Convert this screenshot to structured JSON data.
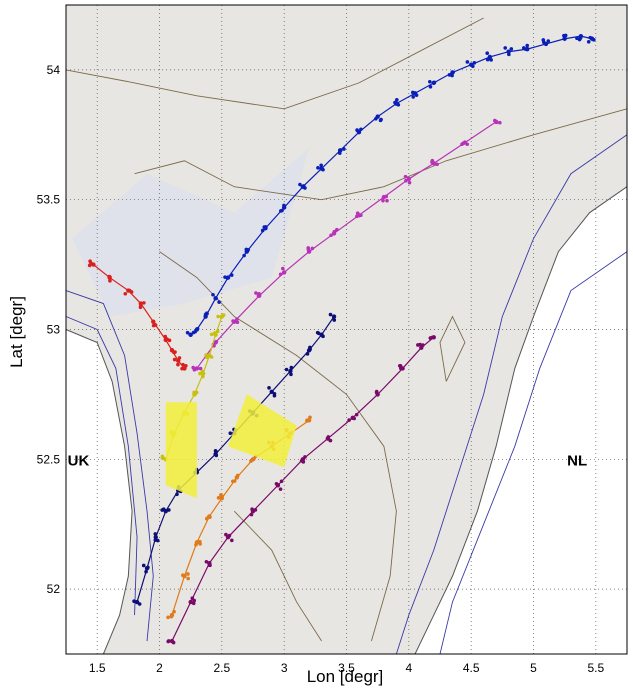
{
  "chart_data": {
    "type": "scatter",
    "title": "",
    "xlabel": "Lon [degr]",
    "ylabel": "Lat [degr]",
    "xlim": [
      1.25,
      5.75
    ],
    "ylim": [
      51.75,
      54.25
    ],
    "xticks": [
      1.5,
      2,
      2.5,
      3,
      3.5,
      4,
      4.5,
      5,
      5.5
    ],
    "yticks": [
      52,
      52.5,
      53,
      53.5,
      54
    ],
    "grid": true,
    "annotations": [
      {
        "text": "UK",
        "x": 1.35,
        "y": 52.5
      },
      {
        "text": "NL",
        "x": 5.35,
        "y": 52.5
      }
    ],
    "colors": {
      "land": "#ffffff",
      "sea": "#e7e6e2",
      "sea_tint": "#dcdfee",
      "contour_depth": "#7c6a4a",
      "contour_coast": "#3a3aa8",
      "coast": "#555555",
      "grid": "#555555"
    },
    "series": [
      {
        "color": "#0a1eb8",
        "kind": "track",
        "points": [
          [
            2.25,
            52.98
          ],
          [
            2.3,
            53.0
          ],
          [
            2.37,
            53.05
          ],
          [
            2.45,
            53.12
          ],
          [
            2.55,
            53.2
          ],
          [
            2.7,
            53.3
          ],
          [
            2.85,
            53.39
          ],
          [
            3.0,
            53.47
          ],
          [
            3.15,
            53.55
          ],
          [
            3.3,
            53.62
          ],
          [
            3.45,
            53.69
          ],
          [
            3.6,
            53.76
          ],
          [
            3.75,
            53.82
          ],
          [
            3.9,
            53.87
          ],
          [
            4.05,
            53.91
          ],
          [
            4.2,
            53.95
          ],
          [
            4.35,
            53.99
          ],
          [
            4.5,
            54.02
          ],
          [
            4.65,
            54.05
          ],
          [
            4.8,
            54.07
          ],
          [
            4.95,
            54.08
          ],
          [
            5.1,
            54.1
          ],
          [
            5.25,
            54.12
          ],
          [
            5.38,
            54.13
          ],
          [
            5.47,
            54.12
          ]
        ]
      },
      {
        "color": "#d9201f",
        "kind": "track",
        "points": [
          [
            1.47,
            53.25
          ],
          [
            1.6,
            53.2
          ],
          [
            1.75,
            53.15
          ],
          [
            1.85,
            53.1
          ],
          [
            1.95,
            53.03
          ],
          [
            2.05,
            52.96
          ],
          [
            2.1,
            52.92
          ],
          [
            2.15,
            52.88
          ],
          [
            2.2,
            52.85
          ]
        ]
      },
      {
        "color": "#b833b8",
        "kind": "track",
        "points": [
          [
            2.3,
            52.85
          ],
          [
            2.45,
            52.95
          ],
          [
            2.6,
            53.03
          ],
          [
            2.8,
            53.13
          ],
          [
            3.0,
            53.22
          ],
          [
            3.2,
            53.3
          ],
          [
            3.4,
            53.37
          ],
          [
            3.6,
            53.44
          ],
          [
            3.8,
            53.51
          ],
          [
            4.0,
            53.58
          ],
          [
            4.2,
            53.64
          ],
          [
            4.45,
            53.72
          ],
          [
            4.7,
            53.8
          ]
        ]
      },
      {
        "color": "#0d0f78",
        "kind": "track",
        "points": [
          [
            1.82,
            51.95
          ],
          [
            1.9,
            52.08
          ],
          [
            1.97,
            52.2
          ],
          [
            2.05,
            52.3
          ],
          [
            2.15,
            52.38
          ],
          [
            2.3,
            52.45
          ],
          [
            2.45,
            52.52
          ],
          [
            2.6,
            52.6
          ],
          [
            2.75,
            52.68
          ],
          [
            2.9,
            52.76
          ],
          [
            3.05,
            52.84
          ],
          [
            3.2,
            52.92
          ],
          [
            3.3,
            52.98
          ],
          [
            3.4,
            53.05
          ]
        ]
      },
      {
        "color": "#c8c010",
        "kind": "track",
        "points": [
          [
            2.05,
            52.5
          ],
          [
            2.12,
            52.6
          ],
          [
            2.2,
            52.68
          ],
          [
            2.28,
            52.75
          ],
          [
            2.35,
            52.83
          ],
          [
            2.4,
            52.9
          ],
          [
            2.45,
            52.98
          ],
          [
            2.5,
            53.05
          ]
        ]
      },
      {
        "color": "#e07a1a",
        "kind": "track",
        "points": [
          [
            2.1,
            51.9
          ],
          [
            2.2,
            52.05
          ],
          [
            2.3,
            52.18
          ],
          [
            2.4,
            52.28
          ],
          [
            2.5,
            52.35
          ],
          [
            2.62,
            52.43
          ],
          [
            2.75,
            52.5
          ],
          [
            2.9,
            52.55
          ],
          [
            3.05,
            52.6
          ],
          [
            3.2,
            52.65
          ]
        ]
      },
      {
        "color": "#7a0a6a",
        "kind": "track",
        "points": [
          [
            2.1,
            51.8
          ],
          [
            2.25,
            51.95
          ],
          [
            2.4,
            52.1
          ],
          [
            2.55,
            52.2
          ],
          [
            2.75,
            52.3
          ],
          [
            2.95,
            52.4
          ],
          [
            3.15,
            52.5
          ],
          [
            3.35,
            52.58
          ],
          [
            3.55,
            52.66
          ],
          [
            3.75,
            52.75
          ],
          [
            3.95,
            52.85
          ],
          [
            4.1,
            52.93
          ],
          [
            4.2,
            52.97
          ]
        ]
      },
      {
        "color": "#f2ee3a",
        "kind": "patch",
        "points": [
          [
            2.05,
            52.72
          ],
          [
            2.3,
            52.72
          ],
          [
            2.3,
            52.35
          ],
          [
            2.05,
            52.4
          ]
        ]
      },
      {
        "color": "#f2ee3a",
        "kind": "patch",
        "points": [
          [
            2.55,
            52.55
          ],
          [
            2.7,
            52.75
          ],
          [
            3.1,
            52.63
          ],
          [
            3.0,
            52.47
          ]
        ]
      }
    ]
  }
}
